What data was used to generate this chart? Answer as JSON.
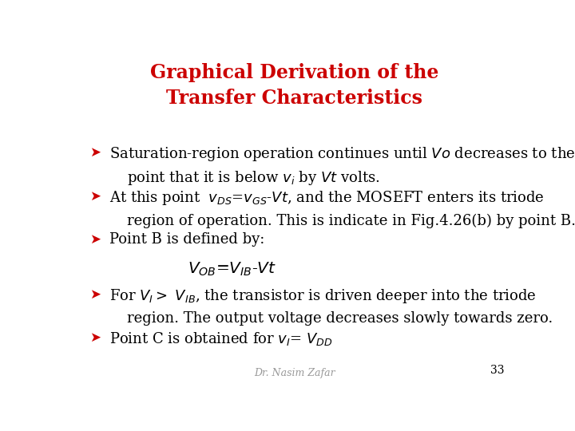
{
  "title_line1": "Graphical Derivation of the",
  "title_line2": "Transfer Characteristics",
  "title_color": "#CC0000",
  "title_fontsize": 17,
  "background_color": "#FFFFFF",
  "bullet_color": "#CC0000",
  "text_color": "#000000",
  "footer_text": "Dr. Nasim Zafar",
  "page_number": "33",
  "body_fontsize": 13.0,
  "bullet_fontsize": 13.0,
  "footer_fontsize": 9,
  "page_fontsize": 10
}
